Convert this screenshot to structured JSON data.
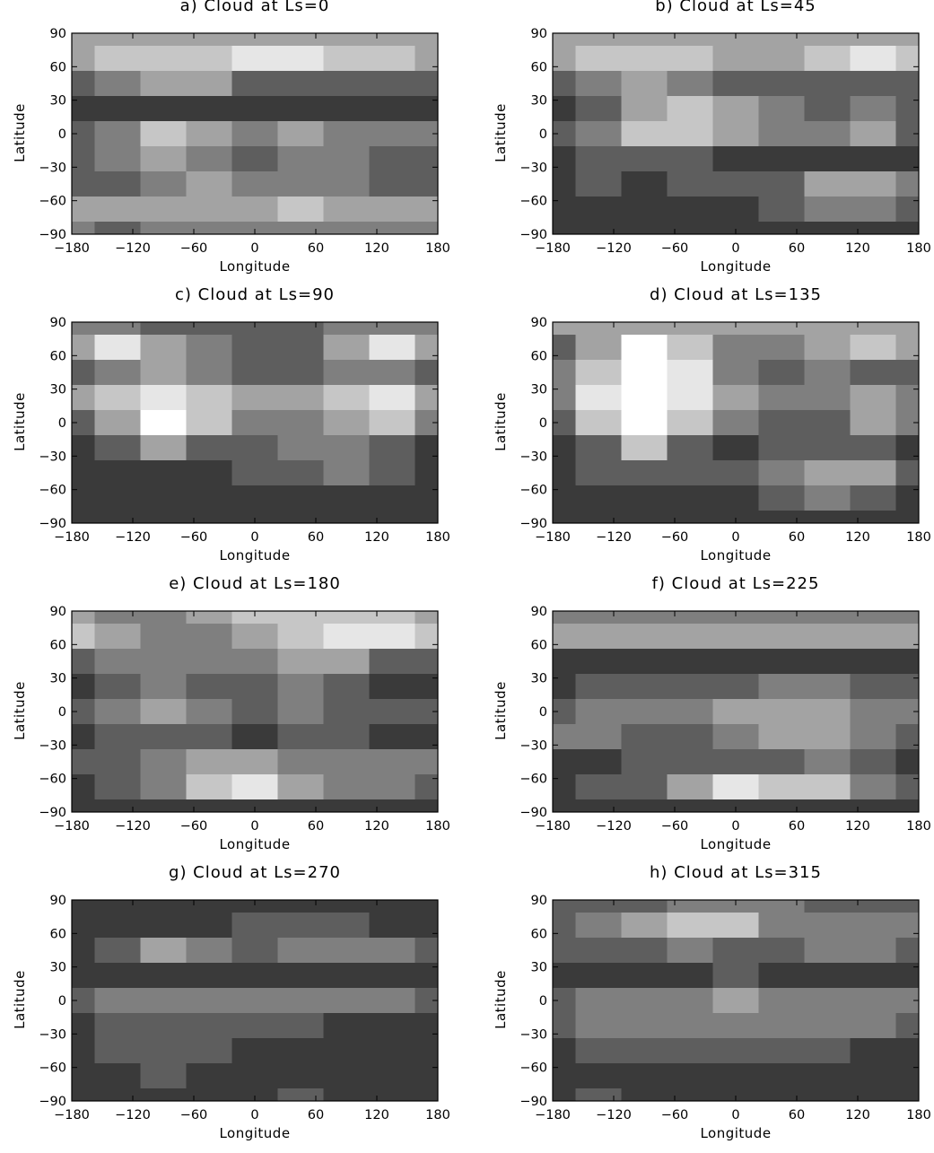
{
  "colors": {
    "levels": [
      "#3a3a3a",
      "#5e5e5e",
      "#7f7f7f",
      "#a3a3a3",
      "#c6c6c6",
      "#e6e6e6",
      "#ffffff"
    ],
    "axis": "#000000",
    "background": "#ffffff"
  },
  "chart_data": [
    {
      "type": "heatmap",
      "title": "a) Cloud at Ls=0",
      "xlabel": "Longitude",
      "ylabel": "Latitude",
      "xlim": [
        -180,
        180
      ],
      "ylim": [
        -90,
        90
      ],
      "xticks": [
        -180,
        -120,
        -60,
        0,
        60,
        120,
        180
      ],
      "yticks": [
        90,
        60,
        30,
        0,
        -30,
        -60,
        -90
      ],
      "xtick_labels": [
        "−180",
        "−120",
        "−60",
        "0",
        "60",
        "120",
        "180"
      ],
      "ytick_labels": [
        "90",
        "60",
        "30",
        "0",
        "−30",
        "−60",
        "−90"
      ],
      "lon": [
        -180,
        -135,
        -90,
        -45,
        0,
        45,
        90,
        135,
        180
      ],
      "lat": [
        90,
        67.5,
        45,
        22.5,
        0,
        -22.5,
        -45,
        -67.5,
        -90
      ],
      "levels": [
        0,
        1,
        2,
        3,
        4,
        5,
        6
      ],
      "z": [
        [
          3,
          3,
          3,
          3,
          3,
          3,
          3,
          3,
          3
        ],
        [
          3,
          4,
          4,
          4,
          5,
          5,
          4,
          4,
          3
        ],
        [
          1,
          2,
          3,
          3,
          1,
          1,
          1,
          1,
          1
        ],
        [
          0,
          0,
          0,
          0,
          0,
          0,
          0,
          0,
          0
        ],
        [
          1,
          2,
          4,
          3,
          2,
          3,
          2,
          2,
          2
        ],
        [
          1,
          2,
          3,
          2,
          1,
          2,
          2,
          1,
          1
        ],
        [
          1,
          1,
          2,
          3,
          2,
          2,
          2,
          1,
          1
        ],
        [
          3,
          3,
          3,
          3,
          3,
          4,
          3,
          3,
          3
        ],
        [
          2,
          1,
          2,
          2,
          2,
          2,
          2,
          2,
          2
        ]
      ]
    },
    {
      "type": "heatmap",
      "title": "b) Cloud at Ls=45",
      "xlabel": "Longitude",
      "ylabel": "Latitude",
      "xlim": [
        -180,
        180
      ],
      "ylim": [
        -90,
        90
      ],
      "xticks": [
        -180,
        -120,
        -60,
        0,
        60,
        120,
        180
      ],
      "yticks": [
        90,
        60,
        30,
        0,
        -30,
        -60,
        -90
      ],
      "xtick_labels": [
        "−180",
        "−120",
        "−60",
        "0",
        "60",
        "120",
        "180"
      ],
      "ytick_labels": [
        "90",
        "60",
        "30",
        "0",
        "−30",
        "−60",
        "−90"
      ],
      "lon": [
        -180,
        -135,
        -90,
        -45,
        0,
        45,
        90,
        135,
        180
      ],
      "lat": [
        90,
        67.5,
        45,
        22.5,
        0,
        -22.5,
        -45,
        -67.5,
        -90
      ],
      "levels": [
        0,
        1,
        2,
        3,
        4,
        5,
        6
      ],
      "z": [
        [
          3,
          3,
          3,
          3,
          3,
          3,
          3,
          3,
          3
        ],
        [
          3,
          4,
          4,
          4,
          3,
          3,
          4,
          5,
          4
        ],
        [
          1,
          2,
          3,
          2,
          1,
          1,
          1,
          1,
          1
        ],
        [
          0,
          1,
          3,
          4,
          3,
          2,
          1,
          2,
          1
        ],
        [
          1,
          2,
          4,
          4,
          3,
          2,
          2,
          3,
          1
        ],
        [
          0,
          1,
          1,
          1,
          0,
          0,
          0,
          0,
          0
        ],
        [
          0,
          1,
          0,
          1,
          1,
          1,
          3,
          3,
          2
        ],
        [
          0,
          0,
          0,
          0,
          0,
          1,
          2,
          2,
          1
        ],
        [
          0,
          0,
          0,
          0,
          0,
          0,
          0,
          0,
          0
        ]
      ]
    },
    {
      "type": "heatmap",
      "title": "c) Cloud at Ls=90",
      "xlabel": "Longitude",
      "ylabel": "Latitude",
      "xlim": [
        -180,
        180
      ],
      "ylim": [
        -90,
        90
      ],
      "xticks": [
        -180,
        -120,
        -60,
        0,
        60,
        120,
        180
      ],
      "yticks": [
        90,
        60,
        30,
        0,
        -30,
        -60,
        -90
      ],
      "xtick_labels": [
        "−180",
        "−120",
        "−60",
        "0",
        "60",
        "120",
        "180"
      ],
      "ytick_labels": [
        "90",
        "60",
        "30",
        "0",
        "−30",
        "−60",
        "−90"
      ],
      "lon": [
        -180,
        -135,
        -90,
        -45,
        0,
        45,
        90,
        135,
        180
      ],
      "lat": [
        90,
        67.5,
        45,
        22.5,
        0,
        -22.5,
        -45,
        -67.5,
        -90
      ],
      "levels": [
        0,
        1,
        2,
        3,
        4,
        5,
        6
      ],
      "z": [
        [
          2,
          2,
          1,
          1,
          1,
          1,
          2,
          2,
          2
        ],
        [
          3,
          5,
          3,
          2,
          1,
          1,
          3,
          5,
          3
        ],
        [
          1,
          2,
          3,
          2,
          1,
          1,
          2,
          2,
          1
        ],
        [
          3,
          4,
          5,
          4,
          3,
          3,
          4,
          5,
          3
        ],
        [
          1,
          3,
          6,
          4,
          2,
          2,
          3,
          4,
          2
        ],
        [
          0,
          1,
          3,
          1,
          1,
          2,
          2,
          1,
          0
        ],
        [
          0,
          0,
          0,
          0,
          1,
          1,
          2,
          1,
          0
        ],
        [
          0,
          0,
          0,
          0,
          0,
          0,
          0,
          0,
          0
        ],
        [
          0,
          0,
          0,
          0,
          0,
          0,
          0,
          0,
          0
        ]
      ]
    },
    {
      "type": "heatmap",
      "title": "d) Cloud at Ls=135",
      "xlabel": "Longitude",
      "ylabel": "Latitude",
      "xlim": [
        -180,
        180
      ],
      "ylim": [
        -90,
        90
      ],
      "xticks": [
        -180,
        -120,
        -60,
        0,
        60,
        120,
        180
      ],
      "yticks": [
        90,
        60,
        30,
        0,
        -30,
        -60,
        -90
      ],
      "xtick_labels": [
        "−180",
        "−120",
        "−60",
        "0",
        "60",
        "120",
        "180"
      ],
      "ytick_labels": [
        "90",
        "60",
        "30",
        "0",
        "−30",
        "−60",
        "−90"
      ],
      "lon": [
        -180,
        -135,
        -90,
        -45,
        0,
        45,
        90,
        135,
        180
      ],
      "lat": [
        90,
        67.5,
        45,
        22.5,
        0,
        -22.5,
        -45,
        -67.5,
        -90
      ],
      "levels": [
        0,
        1,
        2,
        3,
        4,
        5,
        6
      ],
      "z": [
        [
          3,
          3,
          3,
          3,
          3,
          3,
          3,
          3,
          3
        ],
        [
          1,
          3,
          6,
          4,
          2,
          2,
          3,
          4,
          3
        ],
        [
          2,
          4,
          6,
          5,
          2,
          1,
          2,
          1,
          1
        ],
        [
          2,
          5,
          6,
          5,
          3,
          2,
          2,
          3,
          2
        ],
        [
          1,
          4,
          6,
          4,
          2,
          1,
          1,
          3,
          2
        ],
        [
          0,
          1,
          4,
          1,
          0,
          1,
          1,
          1,
          0
        ],
        [
          0,
          1,
          1,
          1,
          1,
          2,
          3,
          3,
          1
        ],
        [
          0,
          0,
          0,
          0,
          0,
          1,
          2,
          1,
          0
        ],
        [
          0,
          0,
          0,
          0,
          0,
          0,
          0,
          0,
          0
        ]
      ]
    },
    {
      "type": "heatmap",
      "title": "e) Cloud at Ls=180",
      "xlabel": "Longitude",
      "ylabel": "Latitude",
      "xlim": [
        -180,
        180
      ],
      "ylim": [
        -90,
        90
      ],
      "xticks": [
        -180,
        -120,
        -60,
        0,
        60,
        120,
        180
      ],
      "yticks": [
        90,
        60,
        30,
        0,
        -30,
        -60,
        -90
      ],
      "xtick_labels": [
        "−180",
        "−120",
        "−60",
        "0",
        "60",
        "120",
        "180"
      ],
      "ytick_labels": [
        "90",
        "60",
        "30",
        "0",
        "−30",
        "−60",
        "−90"
      ],
      "lon": [
        -180,
        -135,
        -90,
        -45,
        0,
        45,
        90,
        135,
        180
      ],
      "lat": [
        90,
        67.5,
        45,
        22.5,
        0,
        -22.5,
        -45,
        -67.5,
        -90
      ],
      "levels": [
        0,
        1,
        2,
        3,
        4,
        5,
        6
      ],
      "z": [
        [
          3,
          2,
          2,
          3,
          4,
          4,
          4,
          4,
          3
        ],
        [
          4,
          3,
          2,
          2,
          3,
          4,
          5,
          5,
          4
        ],
        [
          1,
          2,
          2,
          2,
          2,
          3,
          3,
          1,
          1
        ],
        [
          0,
          1,
          2,
          1,
          1,
          2,
          1,
          0,
          0
        ],
        [
          1,
          2,
          3,
          2,
          1,
          2,
          1,
          1,
          1
        ],
        [
          0,
          1,
          1,
          1,
          0,
          1,
          1,
          0,
          0
        ],
        [
          1,
          1,
          2,
          3,
          3,
          2,
          2,
          2,
          2
        ],
        [
          0,
          1,
          2,
          4,
          5,
          3,
          2,
          2,
          1
        ],
        [
          0,
          0,
          0,
          0,
          0,
          0,
          0,
          0,
          0
        ]
      ]
    },
    {
      "type": "heatmap",
      "title": "f) Cloud at Ls=225",
      "xlabel": "Longitude",
      "ylabel": "Latitude",
      "xlim": [
        -180,
        180
      ],
      "ylim": [
        -90,
        90
      ],
      "xticks": [
        -180,
        -120,
        -60,
        0,
        60,
        120,
        180
      ],
      "yticks": [
        90,
        60,
        30,
        0,
        -30,
        -60,
        -90
      ],
      "xtick_labels": [
        "−180",
        "−120",
        "−60",
        "0",
        "60",
        "120",
        "180"
      ],
      "ytick_labels": [
        "90",
        "60",
        "30",
        "0",
        "−30",
        "−60",
        "−90"
      ],
      "lon": [
        -180,
        -135,
        -90,
        -45,
        0,
        45,
        90,
        135,
        180
      ],
      "lat": [
        90,
        67.5,
        45,
        22.5,
        0,
        -22.5,
        -45,
        -67.5,
        -90
      ],
      "levels": [
        0,
        1,
        2,
        3,
        4,
        5,
        6
      ],
      "z": [
        [
          2,
          2,
          2,
          2,
          2,
          2,
          2,
          2,
          2
        ],
        [
          3,
          3,
          3,
          3,
          3,
          3,
          3,
          3,
          3
        ],
        [
          0,
          0,
          0,
          0,
          0,
          0,
          0,
          0,
          0
        ],
        [
          0,
          1,
          1,
          1,
          1,
          2,
          2,
          1,
          1
        ],
        [
          1,
          2,
          2,
          2,
          3,
          3,
          3,
          2,
          2
        ],
        [
          2,
          2,
          1,
          1,
          2,
          3,
          3,
          2,
          1
        ],
        [
          0,
          0,
          1,
          1,
          1,
          1,
          2,
          1,
          0
        ],
        [
          0,
          1,
          1,
          3,
          5,
          4,
          4,
          2,
          1
        ],
        [
          0,
          0,
          0,
          0,
          0,
          0,
          0,
          0,
          0
        ]
      ]
    },
    {
      "type": "heatmap",
      "title": "g) Cloud at Ls=270",
      "xlabel": "Longitude",
      "ylabel": "Latitude",
      "xlim": [
        -180,
        180
      ],
      "ylim": [
        -90,
        90
      ],
      "xticks": [
        -180,
        -120,
        -60,
        0,
        60,
        120,
        180
      ],
      "yticks": [
        90,
        60,
        30,
        0,
        -30,
        -60,
        -90
      ],
      "xtick_labels": [
        "−180",
        "−120",
        "−60",
        "0",
        "60",
        "120",
        "180"
      ],
      "ytick_labels": [
        "90",
        "60",
        "30",
        "0",
        "−30",
        "−60",
        "−90"
      ],
      "lon": [
        -180,
        -135,
        -90,
        -45,
        0,
        45,
        90,
        135,
        180
      ],
      "lat": [
        90,
        67.5,
        45,
        22.5,
        0,
        -22.5,
        -45,
        -67.5,
        -90
      ],
      "levels": [
        0,
        1,
        2,
        3,
        4,
        5,
        6
      ],
      "z": [
        [
          0,
          0,
          0,
          0,
          0,
          0,
          0,
          0,
          0
        ],
        [
          0,
          0,
          0,
          0,
          1,
          1,
          1,
          0,
          0
        ],
        [
          0,
          1,
          3,
          2,
          1,
          2,
          2,
          2,
          1
        ],
        [
          0,
          0,
          0,
          0,
          0,
          0,
          0,
          0,
          0
        ],
        [
          1,
          2,
          2,
          2,
          2,
          2,
          2,
          2,
          1
        ],
        [
          0,
          1,
          1,
          1,
          1,
          1,
          0,
          0,
          0
        ],
        [
          0,
          1,
          1,
          1,
          0,
          0,
          0,
          0,
          0
        ],
        [
          0,
          0,
          1,
          0,
          0,
          0,
          0,
          0,
          0
        ],
        [
          0,
          0,
          0,
          0,
          0,
          1,
          0,
          0,
          0
        ]
      ]
    },
    {
      "type": "heatmap",
      "title": "h) Cloud at Ls=315",
      "xlabel": "Longitude",
      "ylabel": "Latitude",
      "xlim": [
        -180,
        180
      ],
      "ylim": [
        -90,
        90
      ],
      "xticks": [
        -180,
        -120,
        -60,
        0,
        60,
        120,
        180
      ],
      "yticks": [
        90,
        60,
        30,
        0,
        -30,
        -60,
        -90
      ],
      "xtick_labels": [
        "−180",
        "−120",
        "−60",
        "0",
        "60",
        "120",
        "180"
      ],
      "ytick_labels": [
        "90",
        "60",
        "30",
        "0",
        "−30",
        "−60",
        "−90"
      ],
      "lon": [
        -180,
        -135,
        -90,
        -45,
        0,
        45,
        90,
        135,
        180
      ],
      "lat": [
        90,
        67.5,
        45,
        22.5,
        0,
        -22.5,
        -45,
        -67.5,
        -90
      ],
      "levels": [
        0,
        1,
        2,
        3,
        4,
        5,
        6
      ],
      "z": [
        [
          1,
          1,
          1,
          2,
          2,
          2,
          1,
          1,
          1
        ],
        [
          1,
          2,
          3,
          4,
          4,
          2,
          2,
          2,
          2
        ],
        [
          1,
          1,
          1,
          2,
          1,
          1,
          2,
          2,
          1
        ],
        [
          0,
          0,
          0,
          0,
          1,
          0,
          0,
          0,
          0
        ],
        [
          1,
          2,
          2,
          2,
          3,
          2,
          2,
          2,
          2
        ],
        [
          1,
          2,
          2,
          2,
          2,
          2,
          2,
          2,
          1
        ],
        [
          0,
          1,
          1,
          1,
          1,
          1,
          1,
          0,
          0
        ],
        [
          0,
          0,
          0,
          0,
          0,
          0,
          0,
          0,
          0
        ],
        [
          0,
          1,
          0,
          0,
          0,
          0,
          0,
          0,
          0
        ]
      ]
    }
  ]
}
